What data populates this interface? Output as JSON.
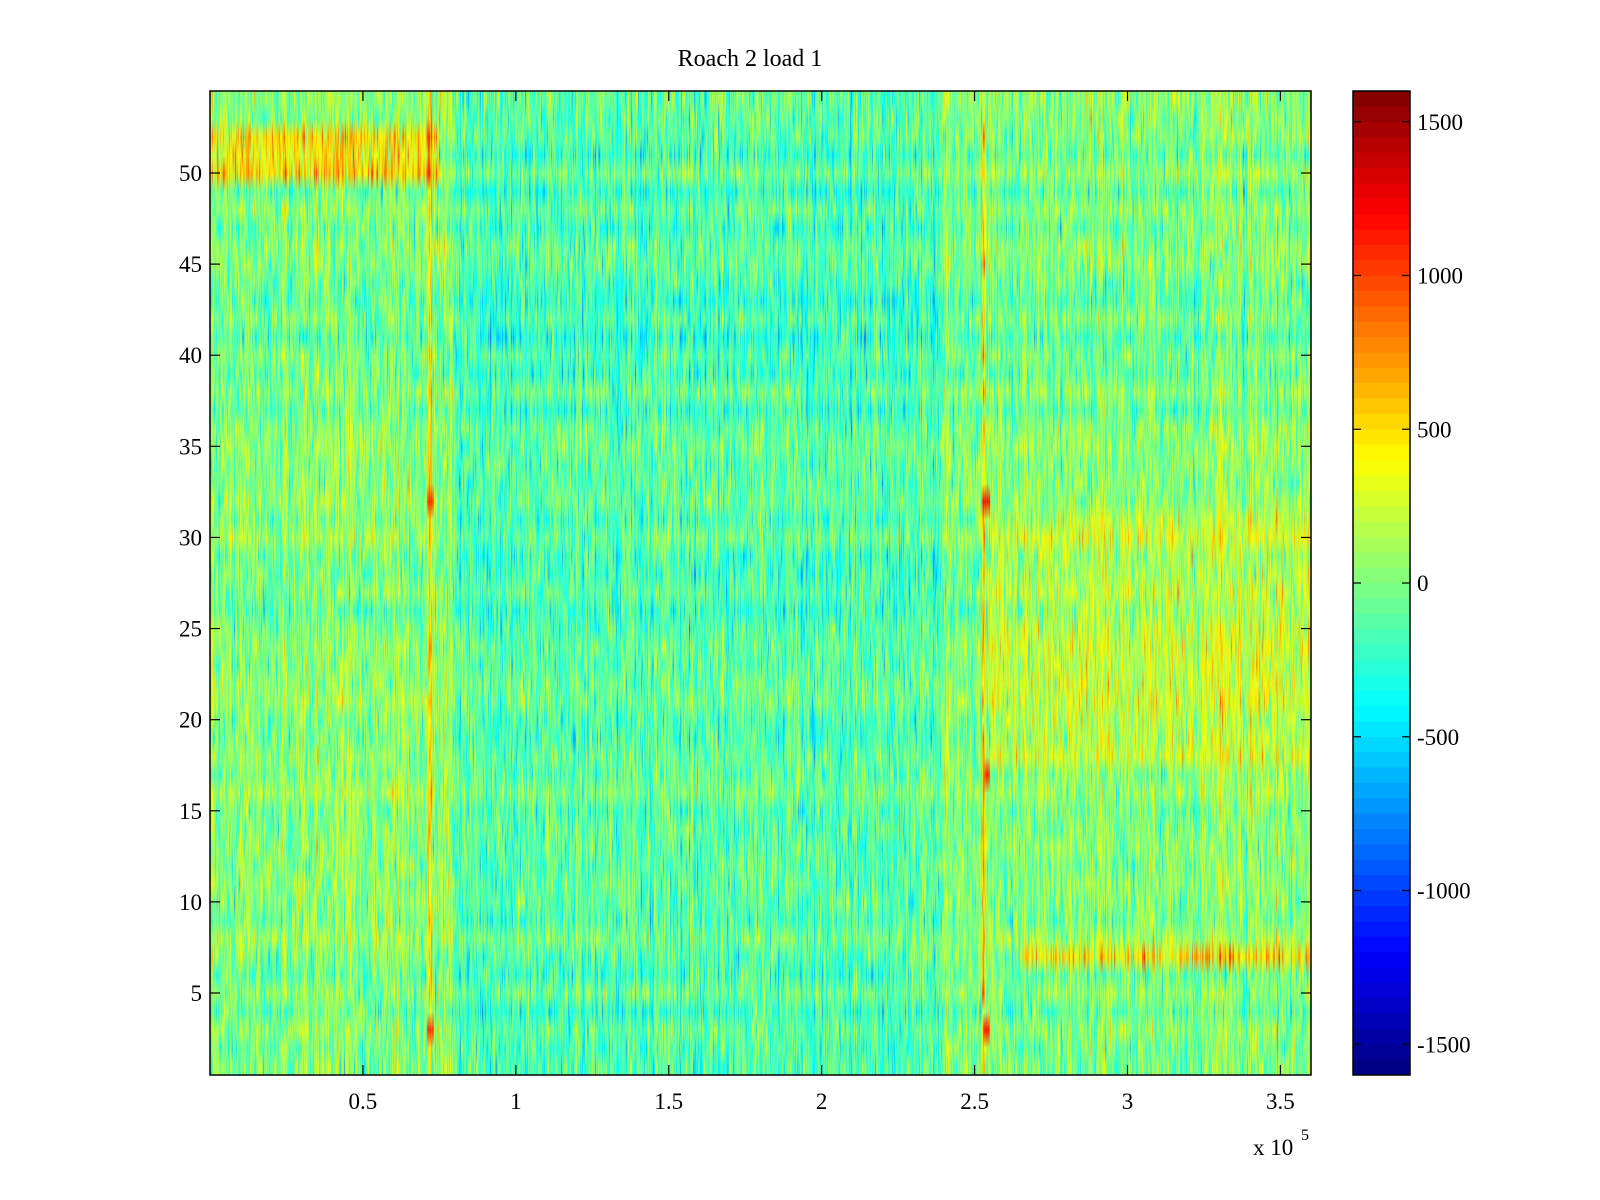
{
  "chart_data": {
    "type": "heatmap",
    "title": "Roach 2 load 1",
    "xlabel": "",
    "ylabel": "",
    "x_multiplier_label": "x 10",
    "x_multiplier_exponent": "5",
    "xlim": [
      0,
      3.6
    ],
    "ylim": [
      0.5,
      54.5
    ],
    "x_ticks": [
      0.5,
      1,
      1.5,
      2,
      2.5,
      3,
      3.5
    ],
    "x_tick_labels": [
      "0.5",
      "1",
      "1.5",
      "2",
      "2.5",
      "3",
      "3.5"
    ],
    "y_ticks": [
      5,
      10,
      15,
      20,
      25,
      30,
      35,
      40,
      45,
      50
    ],
    "y_tick_labels": [
      "5",
      "10",
      "15",
      "20",
      "25",
      "30",
      "35",
      "40",
      "45",
      "50"
    ],
    "rows": 54,
    "colorbar": {
      "colormap": "jet",
      "clim": [
        -1600,
        1600
      ],
      "ticks": [
        -1500,
        -1000,
        -500,
        0,
        500,
        1000,
        1500
      ],
      "tick_labels": [
        "-1500",
        "-1000",
        "-500",
        "0",
        "500",
        "1000",
        "1500"
      ]
    },
    "features": {
      "baseline_mean": 0,
      "noise_level": 260,
      "hot_columns_x": [
        0.72,
        2.53
      ],
      "hot_spots": [
        {
          "x": 0.72,
          "y": 32,
          "value": 1000
        },
        {
          "x": 2.54,
          "y": 32,
          "value": 1150
        },
        {
          "x": 2.54,
          "y": 17,
          "value": 1000
        },
        {
          "x": 0.72,
          "y": 3,
          "value": 1000
        },
        {
          "x": 2.54,
          "y": 3,
          "value": 1100
        }
      ],
      "warm_bands": [
        {
          "x_range": [
            0,
            0.75
          ],
          "y_range": [
            49.5,
            52.5
          ],
          "value": 450
        },
        {
          "x_range": [
            2.65,
            3.6
          ],
          "y_range": [
            6.5,
            7.5
          ],
          "value": 500
        },
        {
          "x_range": [
            2.55,
            3.6
          ],
          "y_range": [
            18,
            31
          ],
          "value": 200
        }
      ],
      "cool_region": {
        "x_range": [
          0.8,
          2.4
        ],
        "value": -150
      }
    }
  }
}
